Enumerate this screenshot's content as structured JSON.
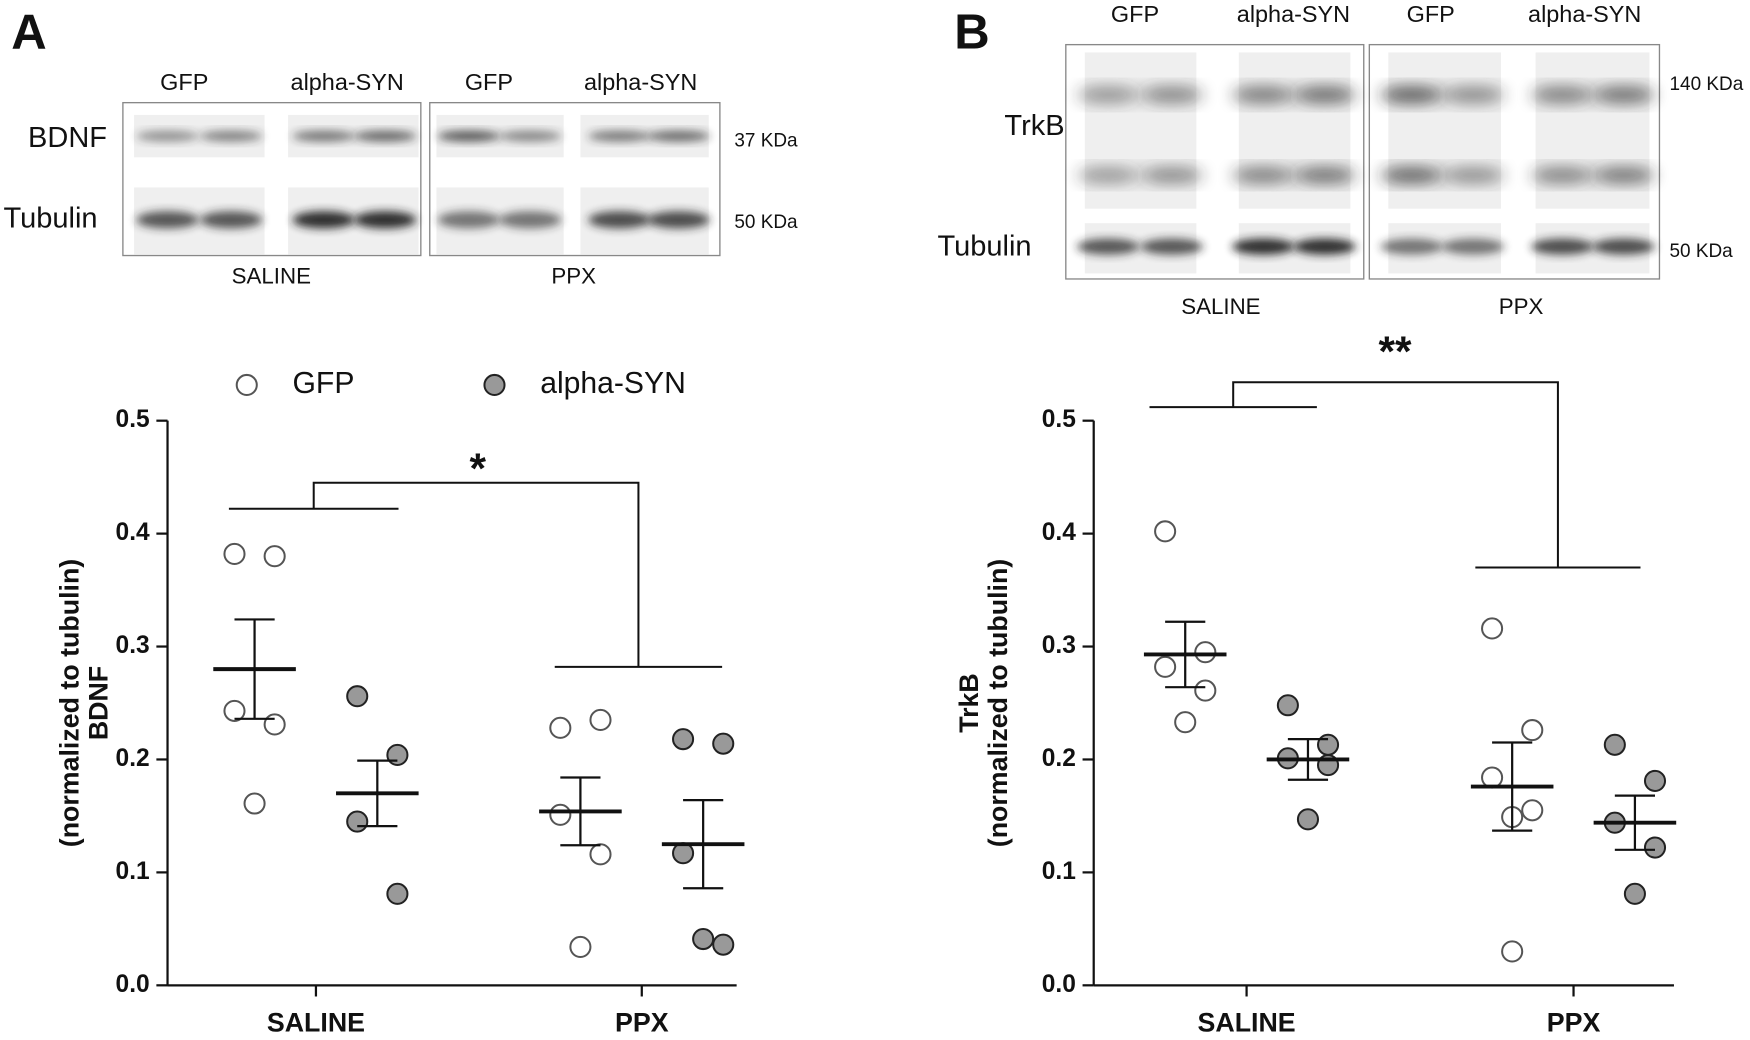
{
  "chart_data": [
    {
      "type": "dotplot",
      "panel_label": "A",
      "categories": [
        "SALINE",
        "PPX"
      ],
      "ylabel": "BDNF",
      "ylabel_sub": "(normalized to tubulin)",
      "ylim": [
        0,
        0.5
      ],
      "yticks": [
        {
          "value": 0,
          "label": "0.0"
        },
        0.1,
        0.2,
        0.3,
        0.4,
        0.5
      ],
      "legend": true,
      "significance": "*",
      "series": [
        {
          "name": "GFP",
          "color": "#ffffff",
          "points": [
            [
              0.382,
              0.38,
              0.243,
              0.231,
              0.161
            ],
            [
              0.228,
              0.235,
              0.151,
              0.116,
              0.034
            ]
          ],
          "mean": [
            0.28,
            0.154
          ],
          "sem": [
            0.044,
            0.03
          ]
        },
        {
          "name": "alpha-SYN",
          "color": "#999999",
          "points": [
            [
              0.256,
              0.204,
              0.145,
              0.081
            ],
            [
              0.218,
              0.214,
              0.117,
              0.036,
              0.041
            ]
          ],
          "mean": [
            0.17,
            0.125
          ],
          "sem": [
            0.029,
            0.039
          ]
        }
      ],
      "blot": {
        "lane_labels": [
          "GFP",
          "alpha-SYN",
          "GFP",
          "alpha-SYN"
        ],
        "row_labels": [
          "BDNF",
          "Tubulin"
        ],
        "sizes": [
          "37 KDa",
          "50 KDa"
        ],
        "group_labels": [
          "SALINE",
          "PPX"
        ]
      }
    },
    {
      "type": "dotplot",
      "panel_label": "B",
      "categories": [
        "SALINE",
        "PPX"
      ],
      "ylabel": "TrkB",
      "ylabel_sub": "(normalized to tubulin)",
      "ylim": [
        0,
        0.5
      ],
      "yticks": [
        {
          "value": 0,
          "label": "0.0"
        },
        0.1,
        0.2,
        0.3,
        0.4,
        0.5
      ],
      "legend": false,
      "significance": "**",
      "series": [
        {
          "color": "#ffffff",
          "points": [
            [
              0.402,
              0.295,
              0.282,
              0.261,
              0.233
            ],
            [
              0.316,
              0.226,
              0.184,
              0.155,
              0.149,
              0.03
            ]
          ],
          "mean": [
            0.293,
            0.176
          ],
          "sem": [
            0.029,
            0.039
          ]
        },
        {
          "color": "#999999",
          "points": [
            [
              0.248,
              0.213,
              0.201,
              0.195,
              0.147
            ],
            [
              0.213,
              0.181,
              0.144,
              0.122,
              0.081
            ]
          ],
          "mean": [
            0.2,
            0.144
          ],
          "sem": [
            0.018,
            0.024
          ]
        }
      ],
      "blot": {
        "lane_labels": [
          "GFP",
          "alpha-SYN",
          "GFP",
          "alpha-SYN"
        ],
        "row_labels": [
          "TrkB",
          "Tubulin"
        ],
        "sizes": [
          "140 KDa",
          "50 KDa"
        ],
        "group_labels": [
          "SALINE",
          "PPX"
        ]
      }
    }
  ]
}
